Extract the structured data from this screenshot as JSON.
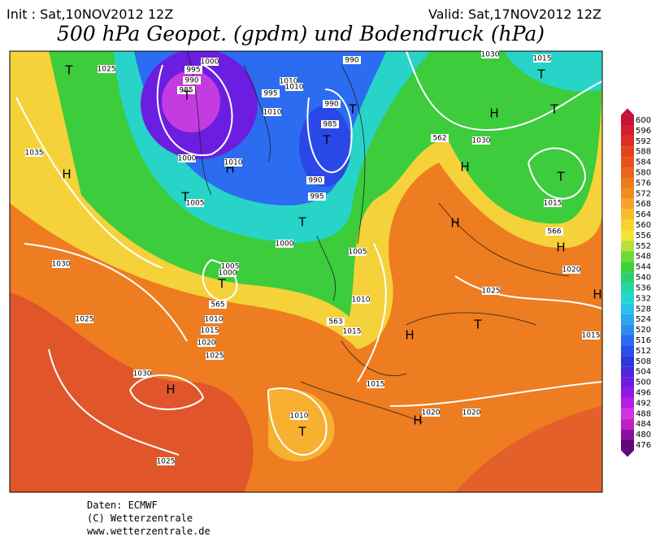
{
  "header": {
    "init": "Init : Sat,10NOV2012 12Z",
    "valid": "Valid: Sat,17NOV2012 12Z",
    "title": "500 hPa Geopot. (gpdm) und Bodendruck (hPa)"
  },
  "colorbar": {
    "ticks": [
      600,
      596,
      592,
      588,
      584,
      580,
      576,
      572,
      568,
      564,
      560,
      556,
      552,
      548,
      544,
      540,
      536,
      532,
      528,
      524,
      520,
      516,
      512,
      508,
      504,
      500,
      496,
      492,
      488,
      484,
      480,
      476
    ],
    "colors": [
      "#c8103c",
      "#d21e2e",
      "#dc2e22",
      "#e3401c",
      "#e7521a",
      "#ea641a",
      "#ee781c",
      "#f28c20",
      "#f5a428",
      "#f7bc2c",
      "#f8d432",
      "#f2e43a",
      "#b8e036",
      "#70d838",
      "#3cd03c",
      "#2cd070",
      "#26d4a8",
      "#24d6d0",
      "#26c4e8",
      "#2aa8ee",
      "#2e8cf0",
      "#2c6cf0",
      "#2a4ee8",
      "#2e36e0",
      "#4828e0",
      "#6c1ee0",
      "#9018e0",
      "#b41ee0",
      "#d232e0",
      "#c020c0",
      "#8a10a0",
      "#5e0878"
    ]
  },
  "map": {
    "labels": [
      "1025",
      "1000",
      "995",
      "990",
      "985",
      "T",
      "T",
      "1035",
      "H",
      "1000",
      "H",
      "1010",
      "1005",
      "T",
      "1030",
      "1010",
      "1010",
      "995",
      "1010",
      "990",
      "985",
      "T",
      "T",
      "990",
      "995",
      "T",
      "1000",
      "990",
      "1030",
      "1015",
      "T",
      "H",
      "T",
      "1030",
      "H",
      "T",
      "1015",
      "562",
      "566",
      "H",
      "H",
      "1020",
      "1005",
      "1005",
      "1000",
      "T",
      "565",
      "1010",
      "1015",
      "1020",
      "1025",
      "1010",
      "563",
      "1015",
      "1025",
      "T",
      "H",
      "H",
      "1015",
      "1025",
      "1030",
      "H",
      "1015",
      "1010",
      "T",
      "H",
      "1020",
      "1020",
      "1025"
    ]
  },
  "footer": [
    "Daten: ECMWF",
    "(C) Wetterzentrale",
    "www.wetterzentrale.de"
  ]
}
